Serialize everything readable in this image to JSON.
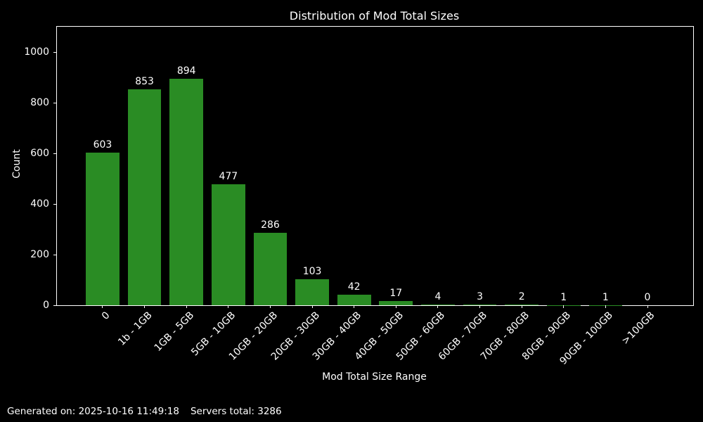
{
  "chart_data": {
    "type": "bar",
    "title": "Distribution of Mod Total Sizes",
    "xlabel": "Mod Total Size Range",
    "ylabel": "Count",
    "categories": [
      "0",
      "1b - 1GB",
      "1GB - 5GB",
      "5GB - 10GB",
      "10GB - 20GB",
      "20GB - 30GB",
      "30GB - 40GB",
      "40GB - 50GB",
      "50GB - 60GB",
      "60GB - 70GB",
      "70GB - 80GB",
      "80GB - 90GB",
      "90GB - 100GB",
      ">100GB"
    ],
    "values": [
      603,
      853,
      894,
      477,
      286,
      103,
      42,
      17,
      4,
      3,
      2,
      1,
      1,
      0
    ],
    "yticks": [
      0,
      200,
      400,
      600,
      800,
      1000
    ],
    "ylim": [
      0,
      1100
    ],
    "grid": false,
    "legend": null,
    "bar_color": "#2a8c24",
    "background_color": "#000000",
    "text_color": "#ffffff"
  },
  "footer": {
    "generated_on": "Generated on: 2025-10-16 11:49:18",
    "servers_total": "Servers total: 3286"
  }
}
